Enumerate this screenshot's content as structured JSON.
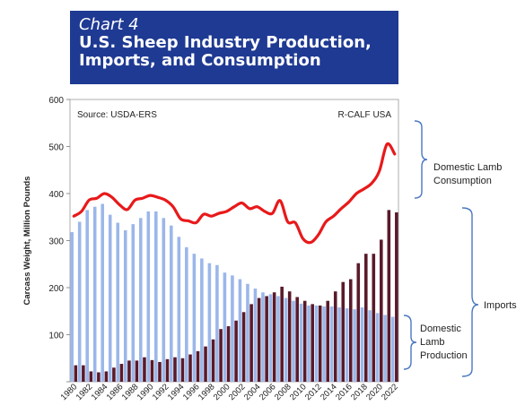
{
  "banner": {
    "label": "Chart 4",
    "title_line1": "U.S. Sheep Industry Production,",
    "title_line2": "Imports, and Consumption"
  },
  "colors": {
    "banner_bg": "#1f3a93",
    "imports_bars": "#9bb7ea",
    "production_bars": "#5a1a2a",
    "consumption_line": "#e8191a",
    "brackets": "#4a78c0"
  },
  "chart_data": {
    "type": "bar",
    "source": "Source:  USDA-ERS",
    "credit": "R-CALF USA",
    "ylabel": "Carcass Weight, Million Pounds",
    "xlabel": "",
    "ylim": [
      0,
      600
    ],
    "yticks": [
      0,
      100,
      200,
      300,
      400,
      500,
      600
    ],
    "ytick_labels": [
      "",
      "100",
      "200",
      "300",
      "400",
      "500",
      "600"
    ],
    "x": [
      1980,
      1981,
      1982,
      1983,
      1984,
      1985,
      1986,
      1987,
      1988,
      1989,
      1990,
      1991,
      1992,
      1993,
      1994,
      1995,
      1996,
      1997,
      1998,
      1999,
      2000,
      2001,
      2002,
      2003,
      2004,
      2005,
      2006,
      2007,
      2008,
      2009,
      2010,
      2011,
      2012,
      2013,
      2014,
      2015,
      2016,
      2017,
      2018,
      2019,
      2020,
      2021,
      2022
    ],
    "xtick_labels": [
      "1980",
      "1982",
      "1984",
      "1986",
      "1988",
      "1990",
      "1992",
      "1994",
      "1996",
      "1998",
      "2000",
      "2002",
      "2004",
      "2006",
      "2008",
      "2010",
      "2012",
      "2014",
      "2016",
      "2018",
      "2020",
      "2022"
    ],
    "series": [
      {
        "name": "Domestic Lamb Production",
        "kind": "bar",
        "values": [
          318,
          340,
          365,
          372,
          378,
          355,
          338,
          322,
          335,
          348,
          362,
          362,
          348,
          332,
          308,
          286,
          272,
          262,
          252,
          248,
          232,
          226,
          218,
          208,
          198,
          190,
          186,
          182,
          178,
          172,
          166,
          162,
          162,
          160,
          160,
          158,
          156,
          154,
          158,
          152,
          146,
          142,
          138
        ]
      },
      {
        "name": "Imports",
        "kind": "bar",
        "values": [
          35,
          35,
          22,
          20,
          22,
          30,
          38,
          45,
          45,
          52,
          46,
          42,
          48,
          52,
          50,
          58,
          65,
          75,
          90,
          112,
          118,
          130,
          148,
          165,
          178,
          182,
          190,
          202,
          192,
          180,
          172,
          165,
          162,
          172,
          192,
          212,
          218,
          252,
          272,
          272,
          302,
          365,
          360
        ]
      },
      {
        "name": "Domestic Lamb Consumption",
        "kind": "line",
        "values": [
          352,
          362,
          386,
          390,
          400,
          392,
          376,
          366,
          386,
          390,
          396,
          392,
          386,
          372,
          346,
          342,
          338,
          356,
          352,
          358,
          362,
          372,
          380,
          368,
          372,
          362,
          358,
          385,
          340,
          338,
          304,
          296,
          312,
          340,
          352,
          368,
          382,
          400,
          410,
          422,
          448,
          505,
          484
        ]
      }
    ],
    "annotations": {
      "consumption": [
        "Domestic Lamb",
        "Consumption"
      ],
      "imports": [
        "Imports"
      ],
      "production": [
        "Domestic",
        "Lamb",
        "Production"
      ]
    },
    "legend": "none",
    "grid": false
  }
}
